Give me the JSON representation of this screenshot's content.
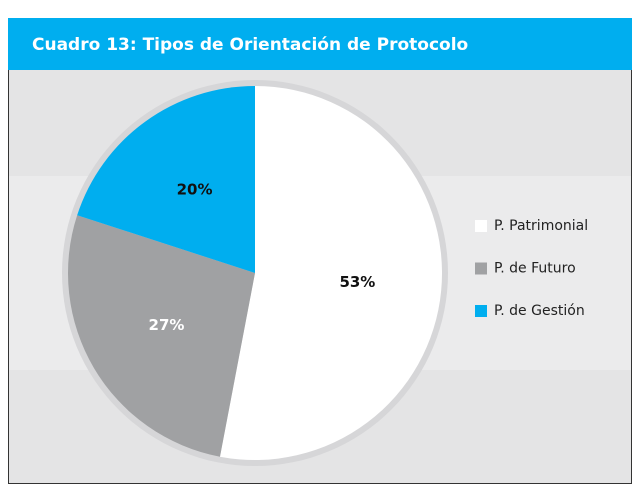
{
  "chart_data": {
    "type": "pie",
    "title": "Cuadro 13: Tipos de Orientación de Protocolo",
    "categories": [
      "P. Patrimonial",
      "P. de Futuro",
      "P. de Gestión"
    ],
    "values": [
      53,
      27,
      20
    ],
    "value_labels": [
      "53%",
      "27%",
      "20%"
    ],
    "colors": [
      "#ffffff",
      "#a0a1a3",
      "#00aeef"
    ],
    "legend": "right"
  }
}
